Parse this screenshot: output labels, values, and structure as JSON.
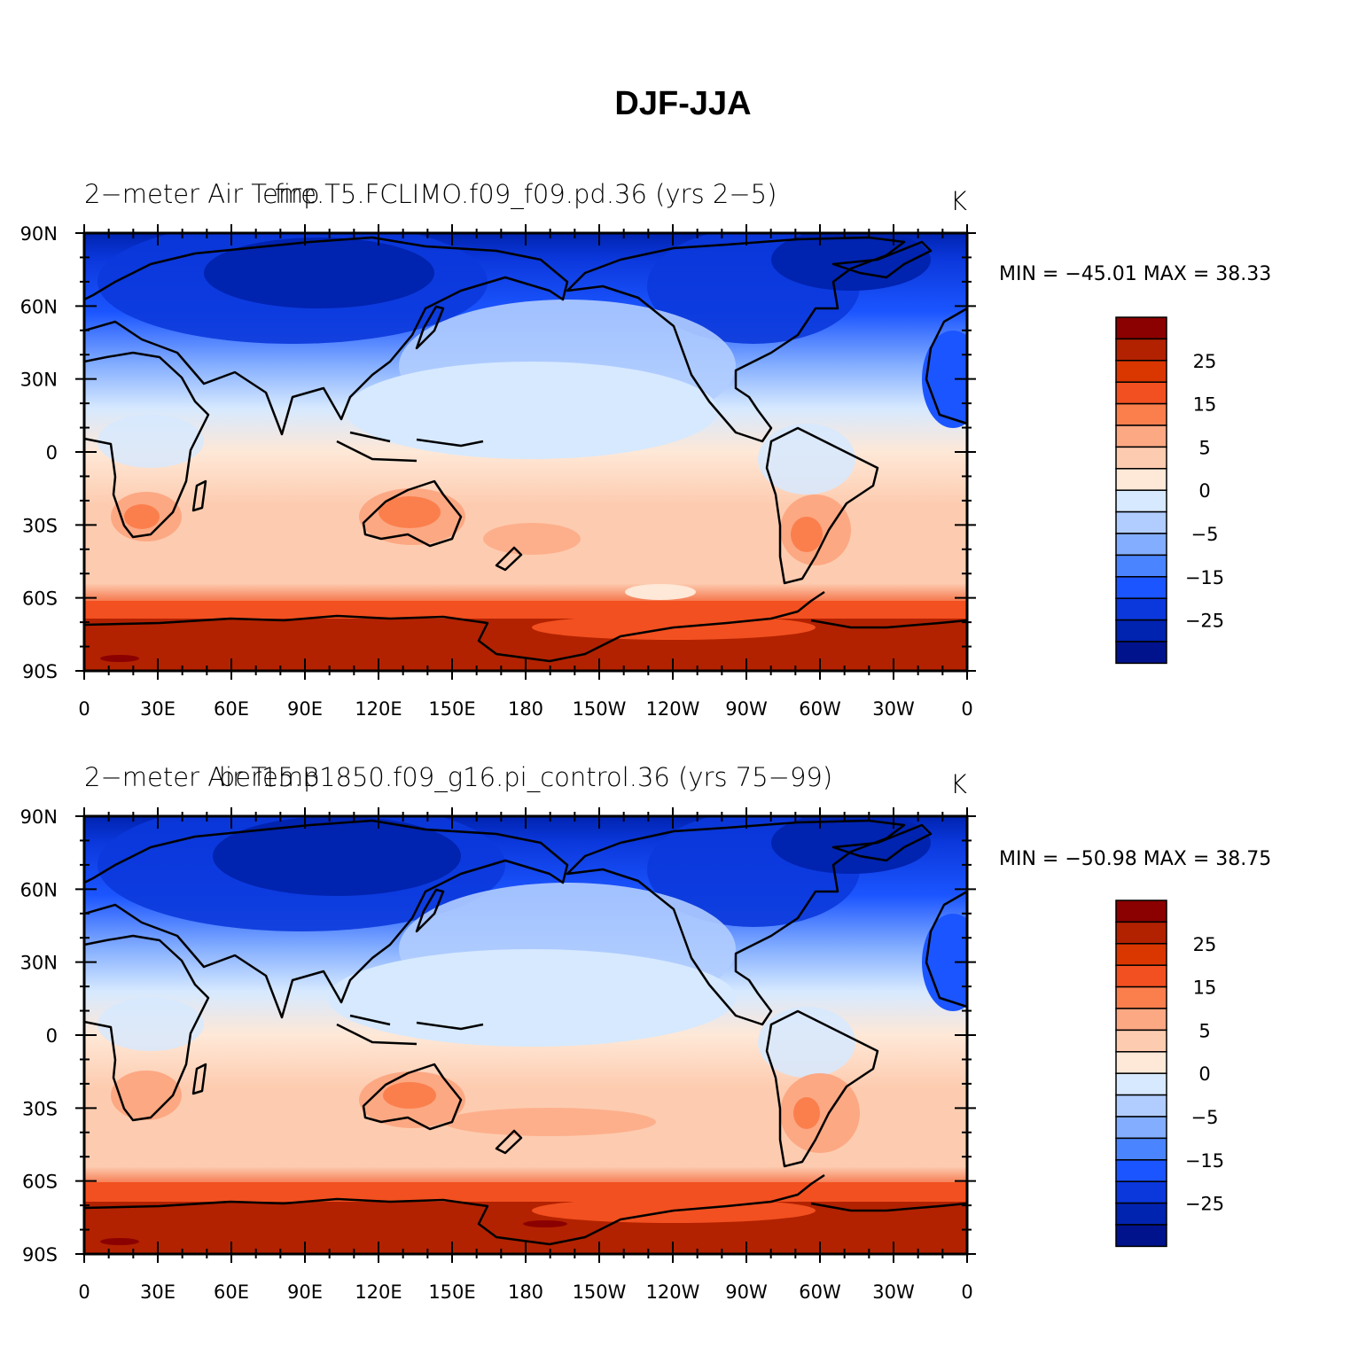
{
  "title": "DJF-JJA",
  "palette": [
    "#8b0000",
    "#b22200",
    "#d93600",
    "#f25020",
    "#fb7f4d",
    "#fca883",
    "#fdccb0",
    "#fee8d7",
    "#d6e9ff",
    "#b1cdff",
    "#83adff",
    "#4a85ff",
    "#1b55ff",
    "#0b38dc",
    "#0023b0",
    "#00128c"
  ],
  "colorbar_labels": [
    "25",
    "15",
    "5",
    "0",
    "−5",
    "−15",
    "−25"
  ],
  "lat_labels": [
    "90N",
    "60N",
    "30N",
    "0",
    "30S",
    "60S",
    "90S"
  ],
  "lon_labels": [
    "0",
    "30E",
    "60E",
    "90E",
    "120E",
    "150E",
    "180",
    "150W",
    "120W",
    "90W",
    "60W",
    "30W",
    "0"
  ],
  "panels": [
    {
      "left_title": "2−meter Air Temp",
      "center_title": "fire.T5.FCLIMO.f09_f09.pd.36 (yrs 2−5)",
      "units": "K",
      "stats": "MIN = −45.01  MAX =   38.33"
    },
    {
      "left_title": "2−meter Air Temp",
      "center_title": "ber15.B1850.f09_g16.pi_control.36 (yrs 75−99)",
      "units": "K",
      "stats": "MIN = −50.98  MAX =   38.75"
    }
  ]
}
